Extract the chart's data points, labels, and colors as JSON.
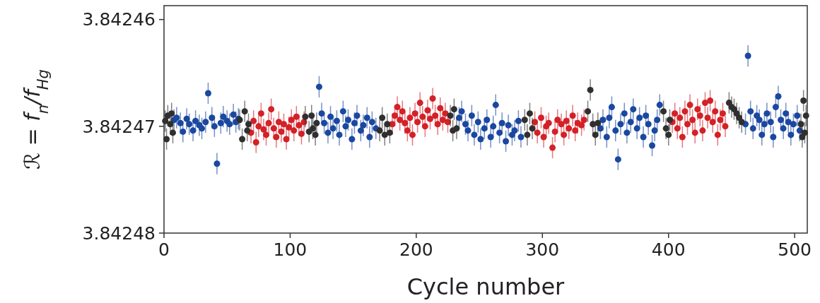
{
  "chart_data": {
    "type": "scatter",
    "xlabel": "Cycle number",
    "ylabel": "ℛ = f$_{n}$/f$_{Hg}$",
    "xlim": [
      0,
      510
    ],
    "xticks": [
      0,
      100,
      200,
      300,
      400,
      500
    ],
    "ylim": [
      3.84248,
      3.8424587
    ],
    "yticks": [
      3.84246,
      3.84247,
      3.84248
    ],
    "grid": false,
    "marker": "circle",
    "series": [
      {
        "color": "#1a47a0",
        "x": [
          8,
          10,
          13,
          15,
          18,
          20,
          23,
          25,
          28,
          30,
          33,
          35,
          38,
          40,
          42,
          45,
          47,
          50,
          52,
          55,
          57,
          59,
          123,
          125,
          127,
          130,
          132,
          134,
          137,
          139,
          142,
          144,
          146,
          149,
          151,
          153,
          156,
          158,
          161,
          163,
          165,
          168,
          234,
          236,
          239,
          241,
          244,
          246,
          249,
          251,
          254,
          256,
          259,
          261,
          263,
          266,
          268,
          271,
          273,
          276,
          278,
          281,
          283,
          346,
          348,
          351,
          353,
          355,
          358,
          360,
          362,
          365,
          367,
          370,
          372,
          375,
          377,
          380,
          382,
          384,
          387,
          389,
          391,
          393,
          461,
          463,
          465,
          467,
          470,
          472,
          474,
          476,
          478,
          481,
          483,
          485,
          487,
          489,
          491,
          493,
          495,
          497,
          499,
          502,
          504
        ],
        "values": [
          3.8424694,
          3.8424692,
          3.8424697,
          3.8424705,
          3.8424693,
          3.8424698,
          3.8424704,
          3.8424695,
          3.8424699,
          3.8424702,
          3.8424696,
          3.8424669,
          3.8424692,
          3.84247,
          3.8424735,
          3.8424697,
          3.8424691,
          3.8424695,
          3.8424698,
          3.8424689,
          3.8424696,
          3.8424693,
          3.8424663,
          3.8424688,
          3.8424697,
          3.8424706,
          3.8424691,
          3.8424702,
          3.8424695,
          3.8424708,
          3.8424686,
          3.84247,
          3.8424694,
          3.8424712,
          3.8424697,
          3.842469,
          3.8424704,
          3.8424699,
          3.8424692,
          3.842471,
          3.8424696,
          3.8424702,
          3.8424692,
          3.8424686,
          3.8424698,
          3.8424704,
          3.842469,
          3.8424708,
          3.8424696,
          3.8424712,
          3.8424702,
          3.8424694,
          3.842471,
          3.84247,
          3.842468,
          3.8424706,
          3.8424697,
          3.8424714,
          3.8424699,
          3.8424708,
          3.8424704,
          3.8424695,
          3.842471,
          3.8424702,
          3.8424694,
          3.842471,
          3.8424692,
          3.8424682,
          3.8424704,
          3.8424731,
          3.8424698,
          3.8424688,
          3.8424706,
          3.8424696,
          3.8424684,
          3.8424702,
          3.8424692,
          3.842471,
          3.842469,
          3.8424698,
          3.8424718,
          3.8424704,
          3.8424694,
          3.842468,
          3.8424698,
          3.8424634,
          3.8424686,
          3.8424702,
          3.842469,
          3.8424694,
          3.8424708,
          3.8424698,
          3.8424688,
          3.8424696,
          3.842471,
          3.8424682,
          3.8424672,
          3.8424694,
          3.8424702,
          3.8424688,
          3.8424696,
          3.8424708,
          3.8424698,
          3.842469,
          3.8424704
        ],
        "errors": [
          1e-06,
          1e-06,
          1e-06,
          1e-06,
          1e-06,
          1e-06,
          1e-06,
          1e-06,
          1e-06,
          1e-06,
          1e-06,
          1e-06,
          1e-06,
          1e-06,
          1e-06,
          1e-06,
          1e-06,
          1e-06,
          1e-06,
          1e-06,
          1e-06,
          1e-06,
          1e-06,
          1e-06,
          1e-06,
          1e-06,
          1e-06,
          1e-06,
          1e-06,
          1e-06,
          1e-06,
          1e-06,
          1e-06,
          1e-06,
          1e-06,
          1e-06,
          1e-06,
          1e-06,
          1e-06,
          1e-06,
          1e-06,
          1e-06,
          1e-06,
          1e-06,
          1e-06,
          1e-06,
          1e-06,
          1e-06,
          1e-06,
          1e-06,
          1e-06,
          1e-06,
          1e-06,
          1e-06,
          1e-06,
          1e-06,
          1e-06,
          1e-06,
          1e-06,
          1e-06,
          1e-06,
          1e-06,
          1e-06,
          1e-06,
          1e-06,
          1e-06,
          1e-06,
          1e-06,
          1e-06,
          1e-06,
          1e-06,
          1e-06,
          1e-06,
          1e-06,
          1e-06,
          1e-06,
          1e-06,
          1e-06,
          1e-06,
          1e-06,
          1e-06,
          1e-06,
          1e-06,
          1e-06,
          1e-06,
          1e-06,
          1e-06,
          1e-06,
          1e-06,
          1e-06,
          1e-06,
          1e-06,
          1e-06,
          1e-06,
          1e-06,
          1e-06,
          1e-06,
          1e-06,
          1e-06,
          1e-06,
          1e-06,
          1e-06,
          1e-06,
          1e-06,
          1e-06
        ]
      },
      {
        "color": "#d42027",
        "x": [
          69,
          71,
          73,
          75,
          77,
          79,
          81,
          83,
          85,
          87,
          89,
          91,
          93,
          95,
          97,
          99,
          101,
          103,
          105,
          107,
          109,
          111,
          181,
          183,
          185,
          187,
          189,
          191,
          193,
          195,
          197,
          199,
          201,
          203,
          205,
          207,
          209,
          211,
          213,
          215,
          217,
          219,
          221,
          223,
          225,
          294,
          296,
          299,
          301,
          303,
          305,
          308,
          310,
          312,
          315,
          317,
          319,
          321,
          324,
          326,
          328,
          331,
          333,
          403,
          405,
          407,
          409,
          411,
          413,
          415,
          417,
          419,
          421,
          423,
          425,
          427,
          429,
          431,
          433,
          435,
          437,
          439,
          441,
          443,
          445
        ],
        "values": [
          3.8424706,
          3.8424695,
          3.8424715,
          3.84247,
          3.8424688,
          3.8424703,
          3.8424708,
          3.8424697,
          3.8424684,
          3.8424702,
          3.842471,
          3.8424696,
          3.8424705,
          3.8424698,
          3.8424712,
          3.8424701,
          3.8424694,
          3.8424704,
          3.8424691,
          3.8424699,
          3.8424707,
          3.8424696,
          3.8424698,
          3.842469,
          3.8424682,
          3.8424694,
          3.8424686,
          3.8424697,
          3.8424704,
          3.8424692,
          3.8424708,
          3.8424688,
          3.8424696,
          3.8424678,
          3.8424691,
          3.84247,
          3.8424685,
          3.8424693,
          3.8424674,
          3.842469,
          3.8424698,
          3.8424683,
          3.8424694,
          3.8424688,
          3.8424696,
          3.8424696,
          3.8424706,
          3.8424692,
          3.842471,
          3.84247,
          3.8424697,
          3.842472,
          3.8424705,
          3.8424694,
          3.8424698,
          3.8424708,
          3.8424695,
          3.8424702,
          3.842469,
          3.8424704,
          3.8424697,
          3.8424699,
          3.8424694,
          3.8424696,
          3.8424688,
          3.8424702,
          3.8424692,
          3.842471,
          3.8424686,
          3.8424698,
          3.842468,
          3.8424694,
          3.8424706,
          3.8424684,
          3.842469,
          3.8424704,
          3.8424678,
          3.8424692,
          3.8424676,
          3.8424696,
          3.8424686,
          3.8424708,
          3.8424694,
          3.8424688,
          3.84247
        ],
        "errors": [
          1e-06,
          1e-06,
          1e-06,
          1e-06,
          1e-06,
          1e-06,
          1e-06,
          1e-06,
          1e-06,
          1e-06,
          1e-06,
          1e-06,
          1e-06,
          1e-06,
          1e-06,
          1e-06,
          1e-06,
          1e-06,
          1e-06,
          1e-06,
          1e-06,
          1e-06,
          1e-06,
          1e-06,
          1e-06,
          1e-06,
          1e-06,
          1e-06,
          1e-06,
          1e-06,
          1e-06,
          1e-06,
          1e-06,
          1e-06,
          1e-06,
          1e-06,
          1e-06,
          1e-06,
          1e-06,
          1e-06,
          1e-06,
          1e-06,
          1e-06,
          1e-06,
          1e-06,
          1e-06,
          1e-06,
          1e-06,
          1e-06,
          1e-06,
          1e-06,
          1e-06,
          1e-06,
          1e-06,
          1e-06,
          1e-06,
          1e-06,
          1e-06,
          1e-06,
          1e-06,
          1e-06,
          1e-06,
          1e-06,
          1e-06,
          1e-06,
          1e-06,
          1e-06,
          1e-06,
          1e-06,
          1e-06,
          1e-06,
          1e-06,
          1e-06,
          1e-06,
          1e-06,
          1e-06,
          1e-06,
          1e-06,
          1e-06,
          1e-06,
          1e-06,
          1e-06,
          1e-06,
          1e-06,
          1e-06
        ]
      },
      {
        "color": "#2f2f2f",
        "x": [
          1,
          2,
          3,
          5,
          6,
          7,
          60,
          62,
          64,
          66,
          67,
          112,
          115,
          117,
          118,
          120,
          121,
          171,
          173,
          175,
          177,
          179,
          227,
          229,
          230,
          232,
          286,
          288,
          290,
          292,
          336,
          338,
          340,
          342,
          344,
          396,
          398,
          400,
          401,
          448,
          450,
          452,
          454,
          456,
          458,
          505,
          506,
          507,
          508,
          509
        ],
        "values": [
          3.8424695,
          3.8424712,
          3.842469,
          3.8424698,
          3.8424688,
          3.8424706,
          3.8424694,
          3.8424712,
          3.8424686,
          3.8424704,
          3.8424698,
          3.8424691,
          3.8424705,
          3.842469,
          3.8424702,
          3.8424708,
          3.8424697,
          3.8424704,
          3.8424692,
          3.8424708,
          3.8424698,
          3.8424706,
          3.842469,
          3.8424704,
          3.8424684,
          3.8424702,
          3.8424694,
          3.8424708,
          3.8424688,
          3.8424702,
          3.8424686,
          3.8424666,
          3.8424698,
          3.8424708,
          3.8424697,
          3.8424686,
          3.8424702,
          3.8424708,
          3.8424694,
          3.8424678,
          3.8424682,
          3.8424684,
          3.8424688,
          3.8424692,
          3.8424696,
          3.8424698,
          3.842471,
          3.8424676,
          3.8424706,
          3.842469
        ],
        "errors": [
          1e-06,
          1e-06,
          1e-06,
          1e-06,
          1e-06,
          1e-06,
          1e-06,
          1e-06,
          1e-06,
          1e-06,
          1e-06,
          1e-06,
          1e-06,
          1e-06,
          1e-06,
          1e-06,
          1e-06,
          1e-06,
          1e-06,
          1e-06,
          1e-06,
          1e-06,
          1e-06,
          1e-06,
          1e-06,
          1e-06,
          1e-06,
          1e-06,
          1e-06,
          1e-06,
          1e-06,
          1e-06,
          1e-06,
          1e-06,
          1e-06,
          1e-06,
          1e-06,
          1e-06,
          1e-06,
          1e-06,
          1e-06,
          1e-06,
          1e-06,
          1e-06,
          1e-06,
          1e-06,
          1e-06,
          1e-06,
          1e-06,
          1e-06
        ]
      }
    ]
  }
}
